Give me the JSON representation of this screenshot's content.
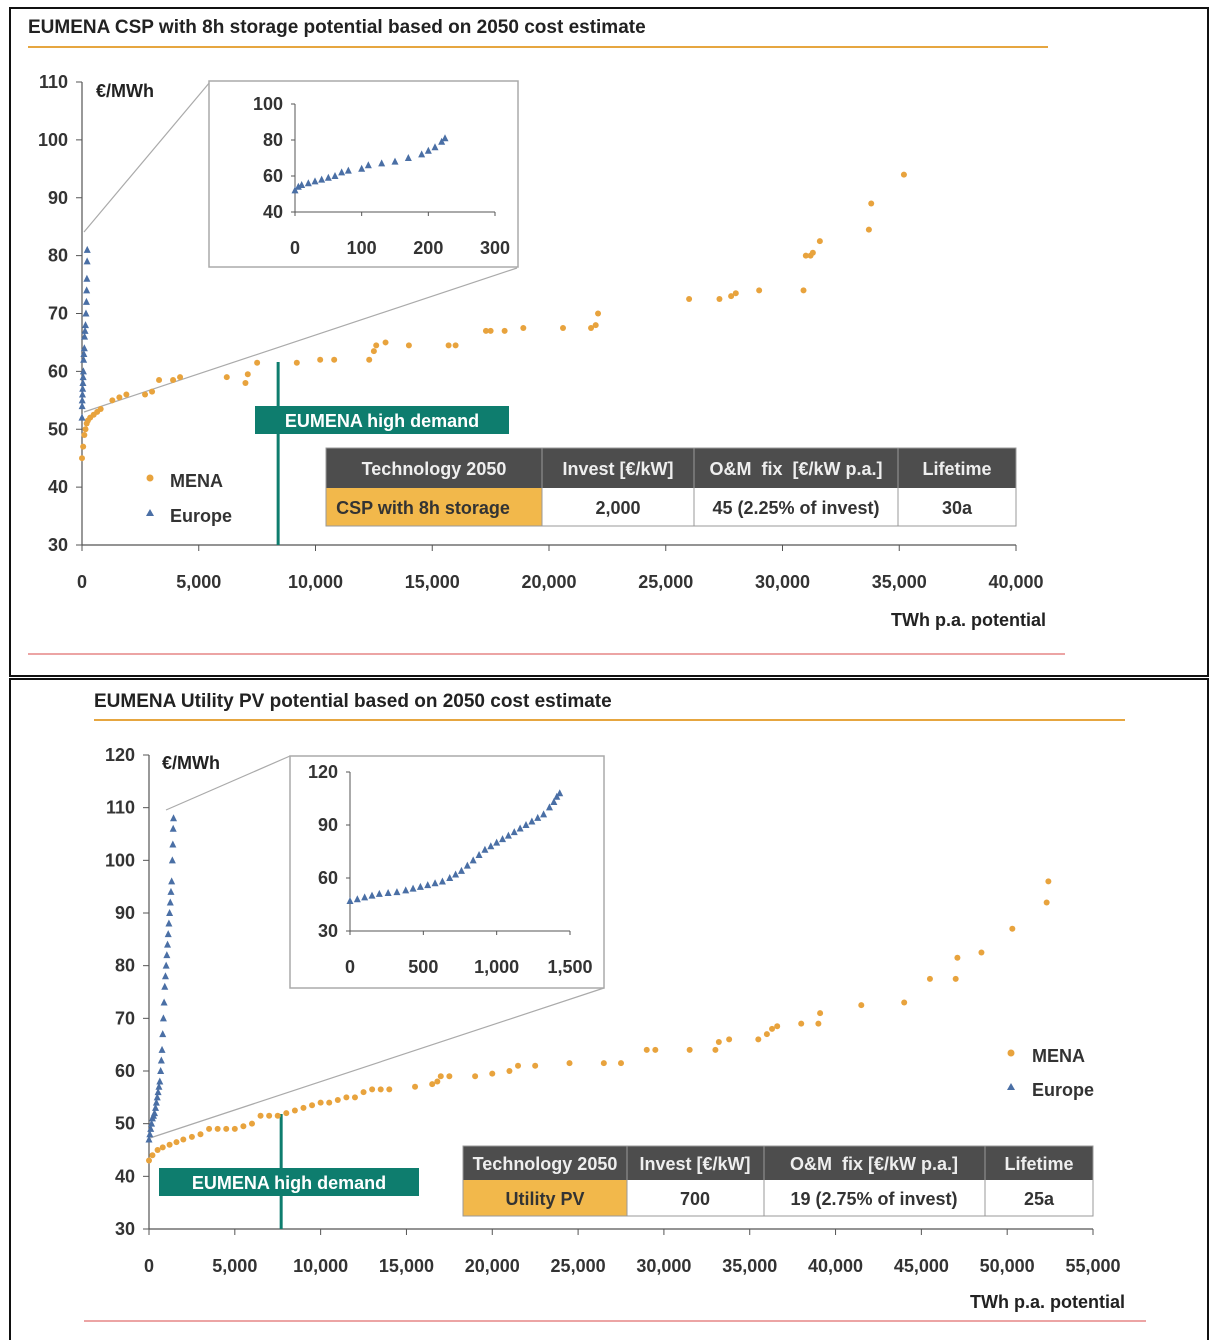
{
  "chart_data": [
    {
      "type": "scatter",
      "title": "EUMENA CSP with 8h storage potential based on 2050 cost estimate",
      "ylabel": "€/MWh",
      "xlabel": "TWh p.a. potential",
      "xlim": [
        0,
        40000
      ],
      "ylim": [
        30,
        110
      ],
      "x_ticks": [
        0,
        5000,
        10000,
        15000,
        20000,
        25000,
        30000,
        35000,
        40000
      ],
      "x_tick_labels": [
        "0",
        "5,000",
        "10,000",
        "15,000",
        "20,000",
        "25,000",
        "30,000",
        "35,000",
        "40,000"
      ],
      "y_ticks": [
        30,
        40,
        50,
        60,
        70,
        80,
        90,
        100,
        110
      ],
      "y_tick_labels": [
        "30",
        "40",
        "50",
        "60",
        "70",
        "80",
        "90",
        "100",
        "110"
      ],
      "legend_position": "bottom-left",
      "series": [
        {
          "name": "MENA",
          "color": "#e8a33d",
          "marker": "circle",
          "x": [
            0,
            50,
            100,
            150,
            200,
            250,
            350,
            500,
            650,
            800,
            1300,
            1600,
            1900,
            2700,
            3000,
            3300,
            3900,
            4200,
            6200,
            7000,
            7100,
            7500,
            9200,
            10200,
            10800,
            12300,
            12500,
            12600,
            13000,
            14000,
            15700,
            16000,
            17300,
            17500,
            18100,
            18900,
            20600,
            21800,
            22000,
            22100,
            26000,
            27300,
            27800,
            28000,
            29000,
            30900,
            31000,
            31200,
            31300,
            31600,
            33700,
            33800,
            35200
          ],
          "y": [
            45,
            47,
            49,
            50,
            51,
            51.5,
            52,
            52.5,
            53,
            53.5,
            55,
            55.5,
            56,
            56,
            56.5,
            58.5,
            58.5,
            59,
            59,
            58,
            59.5,
            61.5,
            61.5,
            62,
            62,
            62,
            63.5,
            64.5,
            65,
            64.5,
            64.5,
            64.5,
            67,
            67,
            67,
            67.5,
            67.5,
            67.5,
            68,
            70,
            72.5,
            72.5,
            73,
            73.5,
            74,
            74,
            80,
            80,
            80.5,
            82.5,
            84.5,
            89,
            94
          ]
        },
        {
          "name": "Europe",
          "color": "#4a6fa5",
          "marker": "triangle",
          "x": [
            0,
            5,
            10,
            20,
            30,
            40,
            50,
            60,
            70,
            80,
            100,
            110,
            130,
            150,
            170,
            190,
            200,
            210,
            220,
            225
          ],
          "y": [
            52,
            54,
            55,
            56,
            57,
            58,
            59,
            60,
            62,
            63,
            64,
            66,
            67,
            68,
            70,
            72,
            74,
            76,
            79,
            81
          ]
        }
      ],
      "inset": {
        "xlim": [
          0,
          300
        ],
        "ylim": [
          40,
          100
        ],
        "x_ticks": [
          "0",
          "100",
          "200",
          "300"
        ],
        "y_ticks": [
          "40",
          "60",
          "80",
          "100"
        ],
        "series": "Europe"
      },
      "annotation": "EUMENA high demand",
      "annotation_x": 8400,
      "table": {
        "headers": [
          "Technology 2050",
          "Invest [€/kW]",
          "O&M  fix  [€/kW p.a.]",
          "Lifetime"
        ],
        "row": [
          "CSP with 8h storage",
          "2,000",
          "45 (2.25% of invest)",
          "30a"
        ]
      }
    },
    {
      "type": "scatter",
      "title": "EUMENA Utility PV potential based on 2050 cost estimate",
      "ylabel": "€/MWh",
      "xlabel": "TWh p.a. potential",
      "xlim": [
        0,
        55000
      ],
      "ylim": [
        30,
        120
      ],
      "x_ticks": [
        0,
        5000,
        10000,
        15000,
        20000,
        25000,
        30000,
        35000,
        40000,
        45000,
        50000,
        55000
      ],
      "x_tick_labels": [
        "0",
        "5,000",
        "10,000",
        "15,000",
        "20,000",
        "25,000",
        "30,000",
        "35,000",
        "40,000",
        "45,000",
        "50,000",
        "55,000"
      ],
      "y_ticks": [
        30,
        40,
        50,
        60,
        70,
        80,
        90,
        100,
        110,
        120
      ],
      "y_tick_labels": [
        "30",
        "40",
        "50",
        "60",
        "70",
        "80",
        "90",
        "100",
        "110",
        "120"
      ],
      "legend_position": "right",
      "series": [
        {
          "name": "MENA",
          "color": "#e8a33d",
          "marker": "circle",
          "x": [
            0,
            200,
            500,
            800,
            1200,
            1600,
            2000,
            2500,
            3000,
            3500,
            4000,
            4500,
            5000,
            5500,
            6000,
            6500,
            7000,
            7500,
            8000,
            8500,
            9000,
            9500,
            10000,
            10500,
            11000,
            11500,
            12000,
            12500,
            13000,
            13500,
            14000,
            15500,
            16500,
            16800,
            17000,
            17500,
            19000,
            20000,
            21000,
            21500,
            22500,
            24500,
            26500,
            27500,
            29000,
            29500,
            31500,
            33000,
            33200,
            33800,
            35500,
            36000,
            36300,
            36600,
            38000,
            39000,
            39100,
            41500,
            44000,
            45500,
            47000,
            47100,
            48500,
            50300,
            52300,
            52400
          ],
          "y": [
            43,
            44,
            45,
            45.5,
            46,
            46.5,
            47,
            47.5,
            48,
            49,
            49,
            49,
            49,
            49.5,
            50,
            51.5,
            51.5,
            51.5,
            52,
            52.5,
            53,
            53.5,
            54,
            54,
            54.5,
            55,
            55,
            56,
            56.5,
            56.5,
            56.5,
            57,
            57.5,
            58,
            59,
            59,
            59,
            59.5,
            60,
            61,
            61,
            61.5,
            61.5,
            61.5,
            64,
            64,
            64,
            64,
            65.5,
            66,
            66,
            67,
            68,
            68.5,
            69,
            69,
            71,
            72.5,
            73,
            77.5,
            77.5,
            81.5,
            82.5,
            87,
            92,
            96
          ],
          "_": 0
        },
        {
          "name": "Europe",
          "color": "#4a6fa5",
          "marker": "triangle",
          "x": [
            0,
            50,
            100,
            150,
            200,
            260,
            320,
            380,
            430,
            480,
            530,
            580,
            630,
            680,
            720,
            760,
            800,
            840,
            880,
            920,
            960,
            1000,
            1040,
            1080,
            1120,
            1160,
            1200,
            1240,
            1280,
            1320,
            1360,
            1390,
            1410,
            1430
          ],
          "y": [
            47,
            48,
            49,
            50,
            51,
            51.5,
            52,
            53,
            54,
            55,
            56,
            57,
            58,
            60,
            62,
            64,
            67,
            70,
            73,
            76,
            78,
            80,
            82,
            84,
            86,
            88,
            90,
            92,
            94,
            96,
            100,
            103,
            106,
            108
          ]
        }
      ],
      "inset": {
        "xlim": [
          0,
          1500
        ],
        "ylim": [
          30,
          120
        ],
        "x_ticks": [
          "0",
          "500",
          "1,000",
          "1,500"
        ],
        "y_ticks": [
          "30",
          "60",
          "90",
          "120"
        ],
        "series": "Europe"
      },
      "annotation": "EUMENA high demand",
      "annotation_x": 7700,
      "table": {
        "headers": [
          "Technology 2050",
          "Invest [€/kW]",
          "O&M  fix [€/kW p.a.]",
          "Lifetime"
        ],
        "row": [
          "Utility PV",
          "700",
          "19 (2.75% of invest)",
          "25a"
        ]
      }
    }
  ]
}
